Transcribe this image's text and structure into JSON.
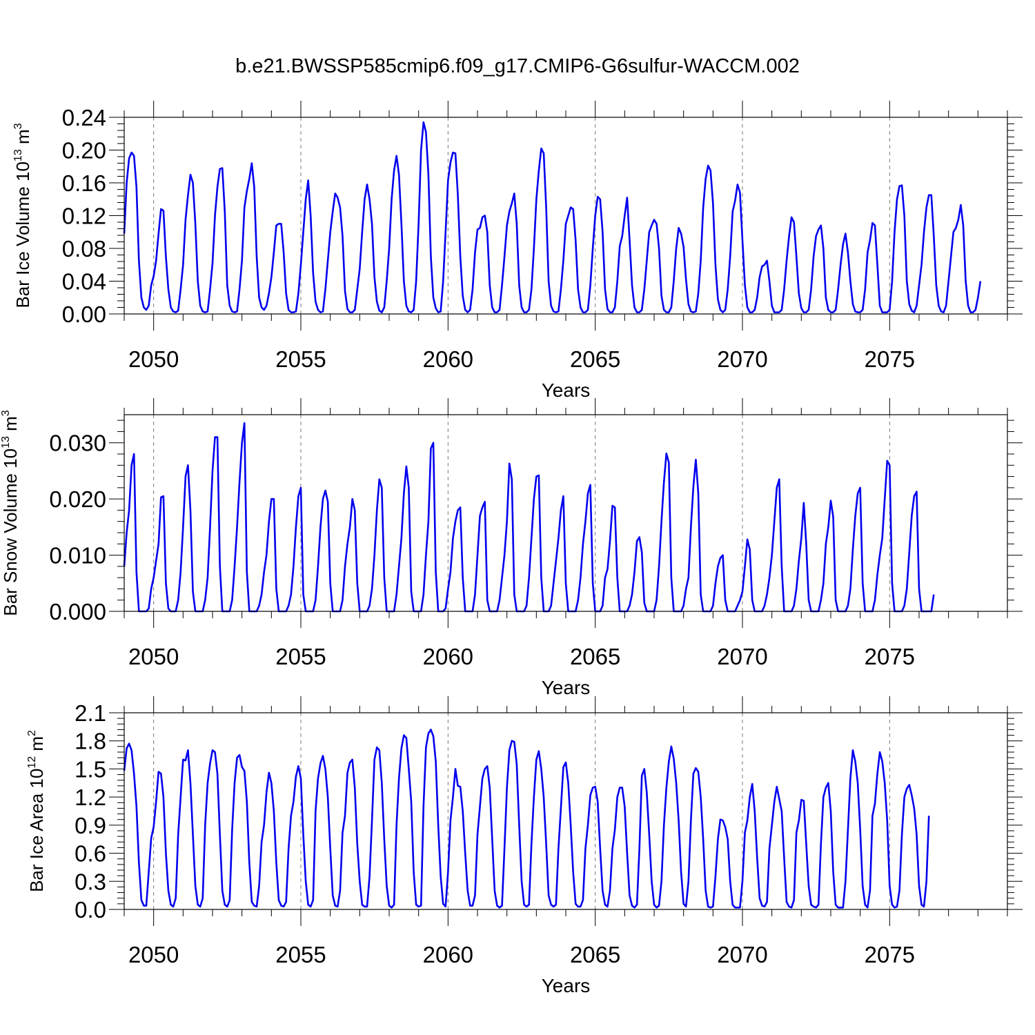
{
  "figure": {
    "title": "b.e21.BWSSP585cmip6.f09_g17.CMIP6-G6sulfur-WACCM.002",
    "line_color": "#0000ee"
  },
  "chart_data": [
    {
      "type": "line",
      "ylabel": {
        "main": "Bar Ice Volume 10",
        "exp": "13",
        "unit": " m",
        "unit_exp": "3"
      },
      "xlabel": "Years",
      "xlim": [
        2049.0,
        2079.0
      ],
      "ylim": [
        0.0,
        0.24
      ],
      "yticks": [
        0.0,
        0.04,
        0.08,
        0.12,
        0.16,
        0.2,
        0.24
      ],
      "ytick_labels": [
        "0.00",
        "0.04",
        "0.08",
        "0.12",
        "0.16",
        "0.20",
        "0.24"
      ],
      "xticks": [
        2050,
        2055,
        2060,
        2065,
        2070,
        2075
      ],
      "xtick_labels": [
        "2050",
        "2055",
        "2060",
        "2065",
        "2070",
        "2075"
      ],
      "series_start": 2049.0,
      "series_step": 0.0833333,
      "values": [
        0.098,
        0.16,
        0.19,
        0.197,
        0.193,
        0.155,
        0.065,
        0.02,
        0.008,
        0.005,
        0.01,
        0.035,
        0.046,
        0.065,
        0.098,
        0.128,
        0.126,
        0.07,
        0.03,
        0.008,
        0.003,
        0.002,
        0.004,
        0.03,
        0.06,
        0.115,
        0.145,
        0.17,
        0.16,
        0.11,
        0.04,
        0.01,
        0.003,
        0.002,
        0.003,
        0.03,
        0.062,
        0.12,
        0.155,
        0.177,
        0.178,
        0.125,
        0.035,
        0.01,
        0.003,
        0.002,
        0.003,
        0.03,
        0.065,
        0.13,
        0.15,
        0.165,
        0.184,
        0.155,
        0.07,
        0.02,
        0.008,
        0.005,
        0.01,
        0.025,
        0.045,
        0.075,
        0.108,
        0.11,
        0.11,
        0.075,
        0.025,
        0.005,
        0.002,
        0.002,
        0.003,
        0.025,
        0.06,
        0.1,
        0.14,
        0.163,
        0.12,
        0.05,
        0.015,
        0.005,
        0.002,
        0.003,
        0.03,
        0.065,
        0.1,
        0.125,
        0.147,
        0.142,
        0.13,
        0.095,
        0.028,
        0.006,
        0.002,
        0.002,
        0.005,
        0.03,
        0.055,
        0.1,
        0.14,
        0.158,
        0.14,
        0.11,
        0.045,
        0.015,
        0.004,
        0.002,
        0.008,
        0.04,
        0.08,
        0.14,
        0.175,
        0.193,
        0.17,
        0.11,
        0.04,
        0.01,
        0.003,
        0.002,
        0.005,
        0.04,
        0.11,
        0.2,
        0.234,
        0.222,
        0.17,
        0.07,
        0.02,
        0.007,
        0.002,
        0.003,
        0.04,
        0.1,
        0.163,
        0.185,
        0.197,
        0.196,
        0.145,
        0.07,
        0.022,
        0.005,
        0.002,
        0.005,
        0.03,
        0.075,
        0.103,
        0.105,
        0.118,
        0.12,
        0.1,
        0.035,
        0.008,
        0.002,
        0.002,
        0.005,
        0.035,
        0.07,
        0.108,
        0.125,
        0.135,
        0.147,
        0.11,
        0.035,
        0.008,
        0.002,
        0.002,
        0.005,
        0.03,
        0.08,
        0.14,
        0.175,
        0.202,
        0.196,
        0.13,
        0.04,
        0.01,
        0.003,
        0.002,
        0.003,
        0.03,
        0.065,
        0.11,
        0.12,
        0.13,
        0.128,
        0.09,
        0.03,
        0.008,
        0.002,
        0.002,
        0.005,
        0.035,
        0.08,
        0.12,
        0.143,
        0.14,
        0.1,
        0.03,
        0.006,
        0.002,
        0.002,
        0.008,
        0.04,
        0.083,
        0.095,
        0.12,
        0.142,
        0.09,
        0.035,
        0.008,
        0.002,
        0.002,
        0.005,
        0.03,
        0.065,
        0.1,
        0.108,
        0.115,
        0.11,
        0.08,
        0.022,
        0.005,
        0.002,
        0.002,
        0.008,
        0.04,
        0.08,
        0.105,
        0.098,
        0.082,
        0.042,
        0.012,
        0.003,
        0.002,
        0.003,
        0.025,
        0.065,
        0.13,
        0.165,
        0.181,
        0.175,
        0.135,
        0.06,
        0.018,
        0.005,
        0.002,
        0.005,
        0.03,
        0.07,
        0.125,
        0.138,
        0.158,
        0.148,
        0.09,
        0.035,
        0.008,
        0.002,
        0.002,
        0.005,
        0.02,
        0.045,
        0.058,
        0.06,
        0.065,
        0.04,
        0.01,
        0.002,
        0.002,
        0.002,
        0.005,
        0.03,
        0.065,
        0.095,
        0.118,
        0.112,
        0.07,
        0.025,
        0.007,
        0.002,
        0.002,
        0.005,
        0.03,
        0.07,
        0.095,
        0.103,
        0.108,
        0.08,
        0.02,
        0.005,
        0.002,
        0.002,
        0.005,
        0.03,
        0.06,
        0.085,
        0.098,
        0.075,
        0.04,
        0.012,
        0.003,
        0.002,
        0.002,
        0.005,
        0.03,
        0.075,
        0.09,
        0.111,
        0.108,
        0.06,
        0.01,
        0.002,
        0.002,
        0.002,
        0.005,
        0.04,
        0.1,
        0.14,
        0.156,
        0.157,
        0.12,
        0.04,
        0.012,
        0.004,
        0.002,
        0.01,
        0.035,
        0.06,
        0.1,
        0.13,
        0.145,
        0.145,
        0.095,
        0.035,
        0.01,
        0.003,
        0.002,
        0.01,
        0.04,
        0.07,
        0.1,
        0.105,
        0.115,
        0.133,
        0.108,
        0.04,
        0.01,
        0.002,
        0.002,
        0.005,
        0.02,
        0.04
      ]
    },
    {
      "type": "line",
      "ylabel": {
        "main": "Bar Snow Volume 10",
        "exp": "13",
        "unit": " m",
        "unit_exp": "3"
      },
      "xlabel": "Years",
      "xlim": [
        2049.0,
        2079.0
      ],
      "ylim": [
        0.0,
        0.035
      ],
      "yticks": [
        0.0,
        0.01,
        0.02,
        0.03
      ],
      "ytick_labels": [
        "0.000",
        "0.010",
        "0.020",
        "0.030"
      ],
      "xticks": [
        2050,
        2055,
        2060,
        2065,
        2070,
        2075
      ],
      "xtick_labels": [
        "2050",
        "2055",
        "2060",
        "2065",
        "2070",
        "2075"
      ],
      "series_start": 2049.0,
      "series_step": 0.0833333,
      "values": [
        0.008,
        0.014,
        0.018,
        0.026,
        0.028,
        0.007,
        0.0,
        0.0,
        0.0,
        0.0,
        0.0005,
        0.004,
        0.006,
        0.009,
        0.012,
        0.0203,
        0.0205,
        0.005,
        0.0005,
        0.0,
        0.0,
        0.0,
        0.002,
        0.007,
        0.015,
        0.024,
        0.026,
        0.018,
        0.0035,
        0.0,
        0.0,
        0.0,
        0.0,
        0.002,
        0.006,
        0.015,
        0.025,
        0.031,
        0.031,
        0.008,
        0.0,
        0.0,
        0.0,
        0.0,
        0.002,
        0.008,
        0.015,
        0.023,
        0.03,
        0.0335,
        0.007,
        0.0,
        0.0,
        0.0,
        0.0,
        0.001,
        0.003,
        0.007,
        0.01,
        0.016,
        0.02,
        0.02,
        0.004,
        0.0,
        0.0,
        0.0,
        0.0,
        0.001,
        0.003,
        0.008,
        0.015,
        0.0205,
        0.022,
        0.003,
        0.0,
        0.0,
        0.0,
        0.0,
        0.002,
        0.008,
        0.015,
        0.02,
        0.0215,
        0.0195,
        0.005,
        0.0,
        0.0,
        0.0,
        0.0,
        0.002,
        0.008,
        0.012,
        0.015,
        0.02,
        0.018,
        0.005,
        0.0,
        0.0,
        0.0,
        0.0,
        0.001,
        0.004,
        0.01,
        0.018,
        0.0235,
        0.022,
        0.006,
        0.0,
        0.0,
        0.0,
        0.0,
        0.003,
        0.008,
        0.013,
        0.021,
        0.0258,
        0.022,
        0.0035,
        0.0,
        0.0,
        0.0,
        0.0,
        0.003,
        0.01,
        0.016,
        0.029,
        0.03,
        0.007,
        0.0,
        0.0,
        0.0,
        0.0005,
        0.004,
        0.007,
        0.013,
        0.016,
        0.018,
        0.0185,
        0.006,
        0.0,
        0.0,
        0.0,
        0.0,
        0.003,
        0.01,
        0.017,
        0.0185,
        0.0195,
        0.002,
        0.0,
        0.0,
        0.0,
        0.0,
        0.002,
        0.006,
        0.01,
        0.016,
        0.0263,
        0.0235,
        0.003,
        0.0,
        0.0,
        0.0,
        0.0,
        0.001,
        0.006,
        0.013,
        0.02,
        0.024,
        0.0242,
        0.006,
        0.0,
        0.0,
        0.0,
        0.001,
        0.005,
        0.009,
        0.013,
        0.018,
        0.0205,
        0.005,
        0.0,
        0.0,
        0.0,
        0.0,
        0.002,
        0.006,
        0.012,
        0.016,
        0.021,
        0.0225,
        0.005,
        0.0,
        0.0,
        0.0,
        0.001,
        0.006,
        0.0075,
        0.0125,
        0.0188,
        0.0185,
        0.006,
        0.0,
        0.0,
        0.0,
        0.0,
        0.001,
        0.003,
        0.007,
        0.0125,
        0.0132,
        0.0105,
        0.0015,
        0.0,
        0.0,
        0.0,
        0.0,
        0.002,
        0.008,
        0.016,
        0.023,
        0.0281,
        0.0265,
        0.006,
        0.0,
        0.0,
        0.0,
        0.0,
        0.001,
        0.004,
        0.006,
        0.015,
        0.0222,
        0.027,
        0.021,
        0.003,
        0.0,
        0.0,
        0.0,
        0.0,
        0.001,
        0.005,
        0.008,
        0.0095,
        0.01,
        0.002,
        0.0,
        0.0,
        0.0,
        0.0,
        0.001,
        0.002,
        0.0035,
        0.008,
        0.0128,
        0.011,
        0.002,
        0.0,
        0.0,
        0.0,
        0.0,
        0.001,
        0.003,
        0.006,
        0.01,
        0.016,
        0.022,
        0.0235,
        0.008,
        0.0,
        0.0,
        0.0,
        0.0,
        0.001,
        0.004,
        0.009,
        0.013,
        0.0193,
        0.012,
        0.002,
        0.0,
        0.0,
        0.0,
        0.0,
        0.002,
        0.005,
        0.012,
        0.015,
        0.0197,
        0.0168,
        0.002,
        0.0,
        0.0,
        0.0,
        0.0,
        0.001,
        0.004,
        0.011,
        0.017,
        0.021,
        0.022,
        0.005,
        0.0,
        0.0,
        0.0,
        0.0,
        0.002,
        0.0065,
        0.01,
        0.013,
        0.02,
        0.0268,
        0.026,
        0.005,
        0.0,
        0.0,
        0.0,
        0.0,
        0.001,
        0.004,
        0.0105,
        0.017,
        0.0205,
        0.0213,
        0.004,
        0.0,
        0.0,
        0.0,
        0.0,
        0.0,
        0.003
      ]
    },
    {
      "type": "line",
      "ylabel": {
        "main": "Bar Ice Area 10",
        "exp": "12",
        "unit": " m",
        "unit_exp": "2"
      },
      "xlabel": "Years",
      "xlim": [
        2049.0,
        2079.0
      ],
      "ylim": [
        0.0,
        2.1
      ],
      "yticks": [
        0.0,
        0.3,
        0.6,
        0.9,
        1.2,
        1.5,
        1.8,
        2.1
      ],
      "ytick_labels": [
        "0.0",
        "0.3",
        "0.6",
        "0.9",
        "1.2",
        "1.5",
        "1.8",
        "2.1"
      ],
      "xticks": [
        2050,
        2055,
        2060,
        2065,
        2070,
        2075
      ],
      "xtick_labels": [
        "2050",
        "2055",
        "2060",
        "2065",
        "2070",
        "2075"
      ],
      "series_start": 2049.0,
      "series_step": 0.0833333,
      "values": [
        1.48,
        1.72,
        1.77,
        1.7,
        1.45,
        1.1,
        0.5,
        0.1,
        0.04,
        0.04,
        0.4,
        0.76,
        0.88,
        1.15,
        1.47,
        1.45,
        1.2,
        0.6,
        0.2,
        0.05,
        0.03,
        0.12,
        0.8,
        1.2,
        1.6,
        1.59,
        1.7,
        1.35,
        0.8,
        0.25,
        0.05,
        0.03,
        0.12,
        0.9,
        1.35,
        1.56,
        1.7,
        1.68,
        1.45,
        0.8,
        0.2,
        0.05,
        0.03,
        0.1,
        0.85,
        1.35,
        1.62,
        1.65,
        1.52,
        1.48,
        1.15,
        0.5,
        0.08,
        0.04,
        0.03,
        0.25,
        0.72,
        0.9,
        1.25,
        1.46,
        1.35,
        1.05,
        0.5,
        0.1,
        0.04,
        0.03,
        0.08,
        0.65,
        1.0,
        1.15,
        1.42,
        1.53,
        1.4,
        0.8,
        0.3,
        0.05,
        0.03,
        0.1,
        1.05,
        1.4,
        1.56,
        1.64,
        1.5,
        1.2,
        0.65,
        0.15,
        0.04,
        0.03,
        0.2,
        0.82,
        1.0,
        1.46,
        1.57,
        1.6,
        1.3,
        0.7,
        0.3,
        0.05,
        0.03,
        0.03,
        0.35,
        0.95,
        1.6,
        1.73,
        1.7,
        1.35,
        0.75,
        0.25,
        0.04,
        0.02,
        0.05,
        0.9,
        1.4,
        1.72,
        1.86,
        1.83,
        1.5,
        1.15,
        0.4,
        0.05,
        0.03,
        0.04,
        1.1,
        1.73,
        1.88,
        1.92,
        1.85,
        1.58,
        0.9,
        0.35,
        0.06,
        0.03,
        0.4,
        0.95,
        1.2,
        1.5,
        1.32,
        1.31,
        1.05,
        0.6,
        0.2,
        0.04,
        0.04,
        0.15,
        0.8,
        1.1,
        1.4,
        1.5,
        1.53,
        1.3,
        0.75,
        0.2,
        0.04,
        0.02,
        0.04,
        0.65,
        1.3,
        1.7,
        1.8,
        1.79,
        1.55,
        0.9,
        0.3,
        0.05,
        0.03,
        0.05,
        0.7,
        1.2,
        1.6,
        1.69,
        1.5,
        1.2,
        0.7,
        0.15,
        0.05,
        0.03,
        0.05,
        0.65,
        1.08,
        1.52,
        1.57,
        1.35,
        0.9,
        0.4,
        0.06,
        0.03,
        0.03,
        0.1,
        0.65,
        0.9,
        1.22,
        1.3,
        1.31,
        1.15,
        0.65,
        0.2,
        0.05,
        0.03,
        0.2,
        0.65,
        0.85,
        1.2,
        1.3,
        1.3,
        1.1,
        0.6,
        0.15,
        0.04,
        0.02,
        0.05,
        0.65,
        1.43,
        1.5,
        1.25,
        0.8,
        0.3,
        0.05,
        0.02,
        0.04,
        0.3,
        0.9,
        1.3,
        1.58,
        1.74,
        1.61,
        1.35,
        0.95,
        0.4,
        0.06,
        0.03,
        0.3,
        0.95,
        1.45,
        1.51,
        1.47,
        1.2,
        0.75,
        0.2,
        0.03,
        0.02,
        0.03,
        0.35,
        0.75,
        0.96,
        0.95,
        0.88,
        0.75,
        0.3,
        0.05,
        0.02,
        0.02,
        0.02,
        0.3,
        0.82,
        0.95,
        1.2,
        1.34,
        1.05,
        0.55,
        0.12,
        0.04,
        0.03,
        0.08,
        0.65,
        0.9,
        1.15,
        1.31,
        1.18,
        1.05,
        0.55,
        0.08,
        0.03,
        0.02,
        0.1,
        0.82,
        0.95,
        1.17,
        1.16,
        0.7,
        0.25,
        0.05,
        0.03,
        0.02,
        0.05,
        0.7,
        1.2,
        1.3,
        1.35,
        1.05,
        0.4,
        0.05,
        0.02,
        0.02,
        0.02,
        0.3,
        0.85,
        1.4,
        1.7,
        1.58,
        1.35,
        0.85,
        0.25,
        0.05,
        0.02,
        0.2,
        1.0,
        1.13,
        1.45,
        1.68,
        1.58,
        1.35,
        0.95,
        0.25,
        0.05,
        0.02,
        0.03,
        0.2,
        0.8,
        1.2,
        1.29,
        1.33,
        1.22,
        1.08,
        0.8,
        0.25,
        0.05,
        0.03,
        0.3,
        1.0
      ]
    }
  ]
}
